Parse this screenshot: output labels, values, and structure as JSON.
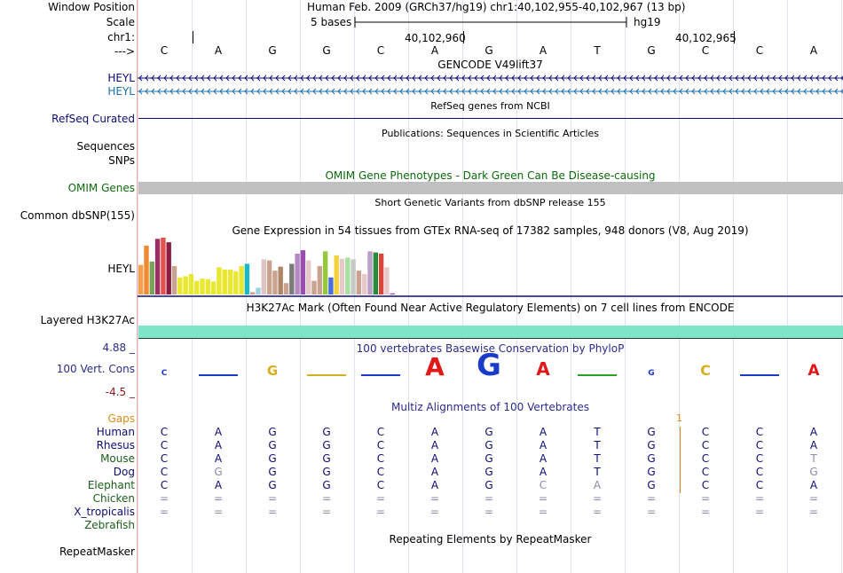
{
  "header": {
    "window_position_label": "Window Position",
    "window_position_value": "Human Feb. 2009 (GRCh37/hg19)   chr1:40,102,955-40,102,967 (13 bp)",
    "scale_label": "Scale",
    "scale_value": "5 bases",
    "scale_assembly": "hg19",
    "chrom_label": "chr1:",
    "coord_1": "40,102,960",
    "coord_2": "40,102,965",
    "strand_label": "--->"
  },
  "reference_bases": [
    "C",
    "A",
    "G",
    "G",
    "C",
    "A",
    "G",
    "A",
    "T",
    "G",
    "C",
    "C",
    "A"
  ],
  "tracks": {
    "gencode": {
      "title": "GENCODE V49lift37",
      "gene_1": "HEYL",
      "gene_2": "HEYL",
      "color_1": "#0c0c78",
      "color_2": "#1c6fad"
    },
    "refseq": {
      "title": "RefSeq genes from NCBI",
      "label": "RefSeq Curated",
      "color": "#0c0c78"
    },
    "publications": {
      "title": "Publications: Sequences in Scientific Articles",
      "label_1": "Sequences",
      "label_2": "SNPs"
    },
    "omim": {
      "title": "OMIM Gene Phenotypes - Dark Green Can Be Disease-causing",
      "label": "OMIM Genes",
      "color": "#0b6b0b",
      "bar_color": "#c0c0c0"
    },
    "dbsnp": {
      "title": "Short Genetic Variants from dbSNP release 155",
      "label": "Common dbSNP(155)"
    },
    "gtex": {
      "title": "Gene Expression in 54 tissues from GTEx RNA-seq of 17382 samples, 948 donors (V8, Aug 2019)",
      "label": "HEYL"
    },
    "h3k27ac": {
      "title": "H3K27Ac Mark (Often Found Near Active Regulatory Elements) on 7 cell lines from ENCODE",
      "label": "Layered H3K27Ac",
      "bar_color": "#7ee6c8"
    },
    "conservation": {
      "title": "100 vertebrates Basewise Conservation by PhyloP",
      "label": "100 Vert. Cons",
      "y_max": "4.88 _",
      "y_min": "-4.5 _",
      "color": "#2b2b8c"
    },
    "multiz": {
      "title": "Multiz Alignments of 100 Vertebrates",
      "gaps_label": "Gaps",
      "gaps_color": "#d98c1a"
    },
    "repeatmasker": {
      "title": "Repeating Elements by RepeatMasker",
      "label": "RepeatMasker"
    }
  },
  "species": [
    {
      "name": "Human",
      "color": "#0c0c78",
      "bases": [
        "C",
        "A",
        "G",
        "G",
        "C",
        "A",
        "G",
        "A",
        "T",
        "G",
        "C",
        "C",
        "A"
      ]
    },
    {
      "name": "Rhesus",
      "color": "#0c0c78",
      "bases": [
        "C",
        "A",
        "G",
        "G",
        "C",
        "A",
        "G",
        "A",
        "T",
        "G",
        "C",
        "C",
        "A"
      ]
    },
    {
      "name": "Mouse",
      "color": "#1b5e1b",
      "bases": [
        "C",
        "A",
        "G",
        "G",
        "C",
        "A",
        "G",
        "A",
        "T",
        "G",
        "C",
        "C",
        "T"
      ]
    },
    {
      "name": "Dog",
      "color": "#0c0c78",
      "bases": [
        "C",
        "G",
        "G",
        "G",
        "C",
        "A",
        "G",
        "A",
        "T",
        "G",
        "C",
        "C",
        "G"
      ]
    },
    {
      "name": "Elephant",
      "color": "#1b5e1b",
      "bases": [
        "C",
        "A",
        "G",
        "G",
        "C",
        "A",
        "G",
        "C",
        "A",
        "G",
        "C",
        "C",
        "A"
      ]
    },
    {
      "name": "Chicken",
      "color": "#1b5e1b",
      "bases": [
        "=",
        "=",
        "=",
        "=",
        "=",
        "=",
        "=",
        "=",
        "=",
        "=",
        "=",
        "=",
        "="
      ]
    },
    {
      "name": "X_tropicalis",
      "color": "#0c0c78",
      "bases": [
        "=",
        "=",
        "=",
        "=",
        "=",
        "=",
        "=",
        "=",
        "=",
        "=",
        "=",
        "=",
        "="
      ]
    },
    {
      "name": "Zebrafish",
      "color": "#1b5e1b",
      "bases": []
    }
  ],
  "gtex_bars": [
    {
      "value": 0.52,
      "color": "#f5a04b"
    },
    {
      "value": 0.86,
      "color": "#f08a32"
    },
    {
      "value": 0.58,
      "color": "#7aa35a"
    },
    {
      "value": 0.98,
      "color": "#9c2e63"
    },
    {
      "value": 1.0,
      "color": "#e0524e"
    },
    {
      "value": 0.92,
      "color": "#8b1e3f"
    },
    {
      "value": 0.5,
      "color": "#c9a38f"
    },
    {
      "value": 0.3,
      "color": "#e8e832"
    },
    {
      "value": 0.32,
      "color": "#e8e832"
    },
    {
      "value": 0.36,
      "color": "#e8e832"
    },
    {
      "value": 0.24,
      "color": "#e8e832"
    },
    {
      "value": 0.28,
      "color": "#e8e832"
    },
    {
      "value": 0.27,
      "color": "#e8e832"
    },
    {
      "value": 0.23,
      "color": "#e8e832"
    },
    {
      "value": 0.48,
      "color": "#e8e832"
    },
    {
      "value": 0.44,
      "color": "#e8e832"
    },
    {
      "value": 0.44,
      "color": "#e8e832"
    },
    {
      "value": 0.41,
      "color": "#e8e832"
    },
    {
      "value": 0.5,
      "color": "#e8e832"
    },
    {
      "value": 0.54,
      "color": "#1ab7c8"
    },
    {
      "value": 0.04,
      "color": "#c9a38f"
    },
    {
      "value": 0.12,
      "color": "#9bd4e0"
    },
    {
      "value": 0.62,
      "color": "#e0c4c4"
    },
    {
      "value": 0.6,
      "color": "#c9a38f"
    },
    {
      "value": 0.42,
      "color": "#c9a38f"
    },
    {
      "value": 0.49,
      "color": "#b08566"
    },
    {
      "value": 0.2,
      "color": "#c9a38f"
    },
    {
      "value": 0.54,
      "color": "#7b7b7b"
    },
    {
      "value": 0.72,
      "color": "#b488c0"
    },
    {
      "value": 0.78,
      "color": "#9a4fb0"
    },
    {
      "value": 0.6,
      "color": "#e6c8c8"
    },
    {
      "value": 0.24,
      "color": "#c9a38f"
    },
    {
      "value": 0.5,
      "color": "#c9a38f"
    },
    {
      "value": 0.76,
      "color": "#96c83c"
    },
    {
      "value": 0.3,
      "color": "#4a6edc"
    },
    {
      "value": 0.69,
      "color": "#f5d23c"
    },
    {
      "value": 0.63,
      "color": "#e6c8c8"
    },
    {
      "value": 0.65,
      "color": "#a8e0a0"
    },
    {
      "value": 0.62,
      "color": "#c8c8c8"
    },
    {
      "value": 0.42,
      "color": "#c9a38f"
    },
    {
      "value": 0.36,
      "color": "#e6c8c8"
    },
    {
      "value": 0.76,
      "color": "#b9a0c8"
    },
    {
      "value": 0.74,
      "color": "#2a8a3c"
    },
    {
      "value": 0.72,
      "color": "#d7473a"
    },
    {
      "value": 0.48,
      "color": "#e6c8c8"
    },
    {
      "value": 0.02,
      "color": "#b040b0"
    }
  ],
  "logo": [
    {
      "base": "C",
      "value": 0.05,
      "color": "#1a3ac8"
    },
    {
      "base": "A",
      "value": 0.0,
      "color": "#1a3ac8"
    },
    {
      "base": "G",
      "value": 0.25,
      "color": "#d4b020"
    },
    {
      "base": "G",
      "value": 0.0,
      "color": "#d4b020"
    },
    {
      "base": "C",
      "value": 0.0,
      "color": "#1a3ac8"
    },
    {
      "base": "A",
      "value": 0.75,
      "color": "#e01818"
    },
    {
      "base": "G",
      "value": 1.0,
      "color": "#1a3ac8"
    },
    {
      "base": "A",
      "value": 0.45,
      "color": "#e01818"
    },
    {
      "base": "T",
      "value": 0.02,
      "color": "#2aa02a"
    },
    {
      "base": "G",
      "value": 0.05,
      "color": "#1a3ac8"
    },
    {
      "base": "C",
      "value": 0.3,
      "color": "#d4b020"
    },
    {
      "base": "C",
      "value": 0.0,
      "color": "#1a3ac8"
    },
    {
      "base": "A",
      "value": 0.35,
      "color": "#e01818"
    }
  ]
}
